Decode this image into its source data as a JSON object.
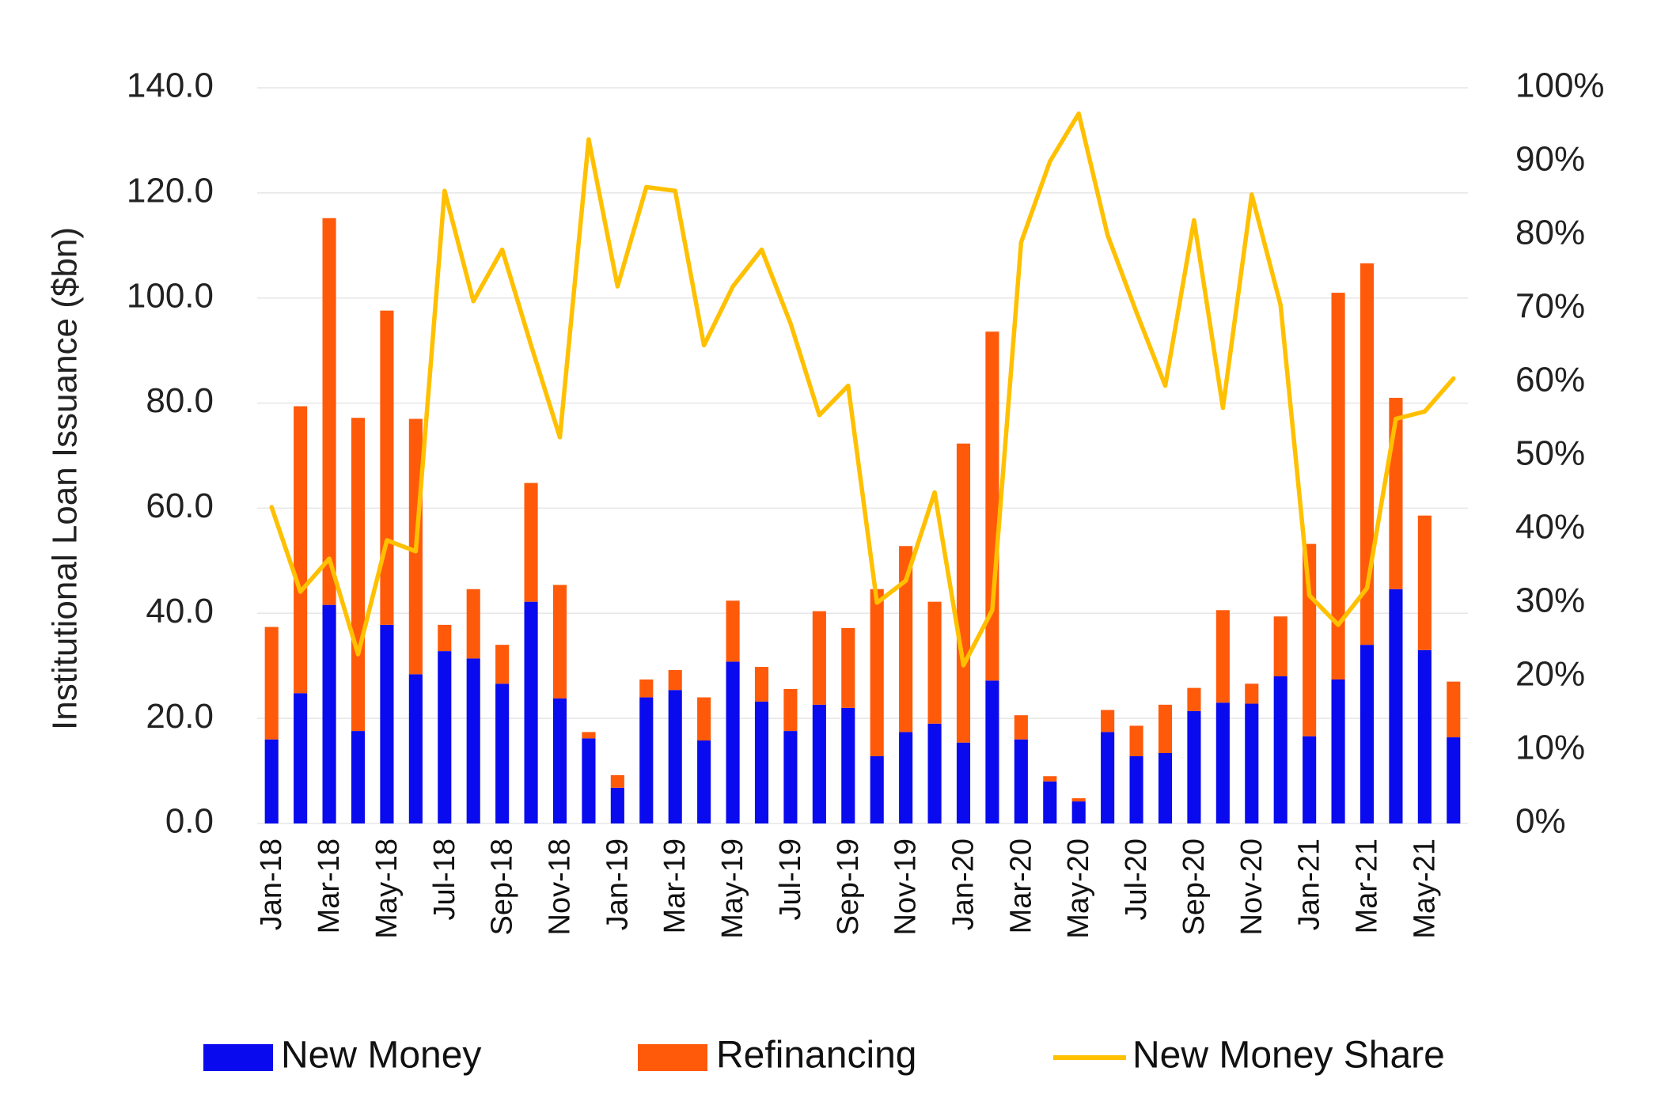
{
  "chart_data": {
    "type": "bar",
    "stacked": true,
    "ylabel": "Institutional Loan Issuance ($bn)",
    "ylim": [
      0,
      140
    ],
    "y_ticks": [
      "0.0",
      "20.0",
      "40.0",
      "60.0",
      "80.0",
      "100.0",
      "120.0",
      "140.0"
    ],
    "y2lim": [
      0,
      100
    ],
    "y2_ticks": [
      "0%",
      "10%",
      "20%",
      "30%",
      "40%",
      "50%",
      "60%",
      "70%",
      "80%",
      "90%",
      "100%"
    ],
    "grid": true,
    "legend_position": "bottom",
    "categories": [
      "Jan-18",
      "Feb-18",
      "Mar-18",
      "Apr-18",
      "May-18",
      "Jun-18",
      "Jul-18",
      "Aug-18",
      "Sep-18",
      "Oct-18",
      "Nov-18",
      "Dec-18",
      "Jan-19",
      "Feb-19",
      "Mar-19",
      "Apr-19",
      "May-19",
      "Jun-19",
      "Jul-19",
      "Aug-19",
      "Sep-19",
      "Oct-19",
      "Nov-19",
      "Dec-19",
      "Jan-20",
      "Feb-20",
      "Mar-20",
      "Apr-20",
      "May-20",
      "Jun-20",
      "Jul-20",
      "Aug-20",
      "Sep-20",
      "Oct-20",
      "Nov-20",
      "Dec-20",
      "Jan-21",
      "Feb-21",
      "Mar-21",
      "Apr-21",
      "May-21",
      "Jun-21"
    ],
    "x_tick_labels": [
      "Jan-18",
      "Mar-18",
      "May-18",
      "Jul-18",
      "Sep-18",
      "Nov-18",
      "Jan-19",
      "Mar-19",
      "May-19",
      "Jul-19",
      "Sep-19",
      "Nov-19",
      "Jan-20",
      "Mar-20",
      "May-20",
      "Jul-20",
      "Sep-20",
      "Nov-20",
      "Jan-21",
      "Mar-21",
      "May-21"
    ],
    "series": [
      {
        "name": "New Money",
        "type": "bar",
        "axis": "left",
        "color": "#0a0aee",
        "values": [
          16.0,
          24.8,
          41.6,
          17.6,
          37.8,
          28.4,
          32.8,
          31.4,
          26.6,
          42.2,
          23.8,
          16.2,
          6.8,
          24.0,
          25.4,
          15.8,
          30.8,
          23.2,
          17.6,
          22.6,
          22.0,
          12.8,
          17.4,
          19.0,
          15.4,
          27.2,
          16.0,
          8.0,
          4.2,
          17.4,
          12.8,
          13.4,
          21.4,
          23.0,
          22.8,
          28.0,
          16.6,
          27.4,
          34.0,
          44.6,
          33.0,
          16.4
        ]
      },
      {
        "name": "Refinancing",
        "type": "bar",
        "axis": "left",
        "color": "#ff5a0a",
        "values": [
          21.4,
          54.6,
          73.6,
          59.6,
          59.8,
          48.6,
          5.0,
          13.2,
          7.4,
          22.6,
          21.6,
          1.2,
          2.4,
          3.4,
          3.8,
          8.2,
          11.6,
          6.6,
          8.0,
          17.8,
          15.2,
          31.8,
          35.4,
          23.2,
          56.9,
          66.4,
          4.6,
          1.0,
          0.6,
          4.2,
          5.8,
          9.2,
          4.4,
          17.6,
          3.8,
          11.4,
          36.6,
          73.6,
          72.6,
          36.4,
          25.6,
          10.6
        ]
      },
      {
        "name": "New Money Share",
        "type": "line",
        "axis": "right",
        "color": "#ffc000",
        "values": [
          43,
          31.5,
          36,
          23,
          38.5,
          37,
          86,
          71,
          78,
          65,
          52.5,
          93,
          73,
          86.5,
          86,
          65,
          73,
          78,
          68,
          55.5,
          59.5,
          30,
          33,
          45,
          21.5,
          29,
          79,
          90,
          96.5,
          80,
          69.5,
          59.5,
          82,
          56.5,
          85.5,
          70.5,
          31,
          27,
          32,
          55,
          56,
          60.5
        ]
      }
    ]
  },
  "legend": [
    {
      "label": "New Money",
      "color": "#0a0aee",
      "kind": "bar"
    },
    {
      "label": "Refinancing",
      "color": "#ff5a0a",
      "kind": "bar"
    },
    {
      "label": "New Money Share",
      "color": "#ffc000",
      "kind": "line"
    }
  ]
}
